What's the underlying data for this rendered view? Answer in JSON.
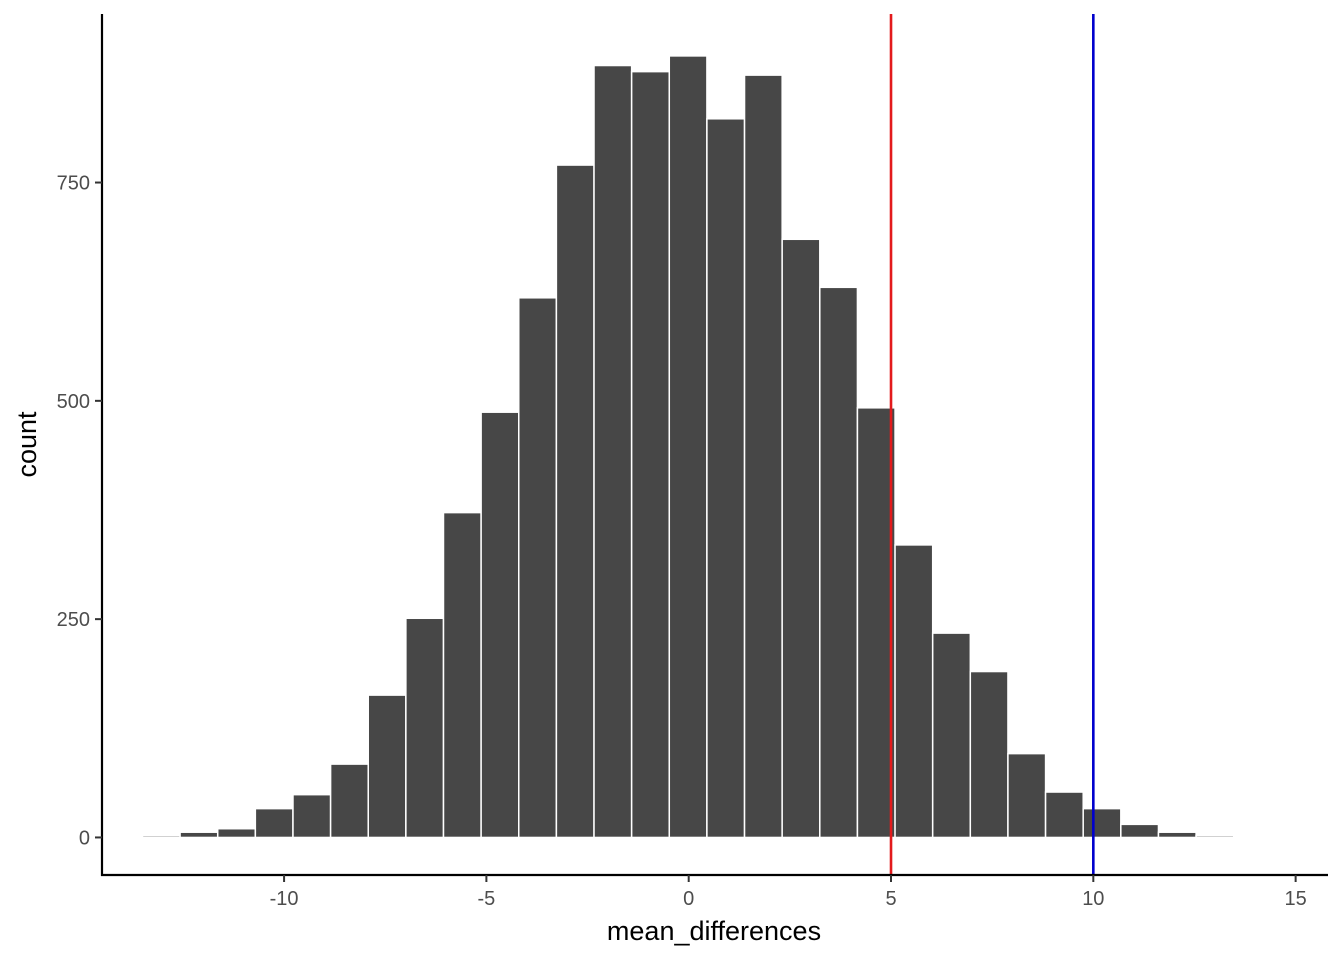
{
  "chart_data": {
    "type": "bar",
    "subtype": "histogram",
    "title": "",
    "xlabel": "mean_differences",
    "ylabel": "count",
    "xlim": [
      -14.5,
      15.8
    ],
    "ylim": [
      -43,
      943
    ],
    "x_ticks": [
      -10,
      -5,
      0,
      5,
      10,
      15
    ],
    "x_tick_labels": [
      "-10",
      "-5",
      "0",
      "5",
      "10",
      "15"
    ],
    "y_ticks": [
      0,
      250,
      500,
      750
    ],
    "y_tick_labels": [
      "0",
      "250",
      "500",
      "750"
    ],
    "bin_width": 0.93,
    "bins": [
      {
        "x0": -13.5,
        "x1": -12.57,
        "count": 2
      },
      {
        "x0": -12.57,
        "x1": -11.64,
        "count": 6
      },
      {
        "x0": -11.64,
        "x1": -10.71,
        "count": 10
      },
      {
        "x0": -10.71,
        "x1": -9.78,
        "count": 33
      },
      {
        "x0": -9.78,
        "x1": -8.85,
        "count": 49
      },
      {
        "x0": -8.85,
        "x1": -7.92,
        "count": 84
      },
      {
        "x0": -7.92,
        "x1": -6.99,
        "count": 163
      },
      {
        "x0": -6.99,
        "x1": -6.06,
        "count": 251
      },
      {
        "x0": -6.06,
        "x1": -5.13,
        "count": 372
      },
      {
        "x0": -5.13,
        "x1": -4.2,
        "count": 487
      },
      {
        "x0": -4.2,
        "x1": -3.27,
        "count": 618
      },
      {
        "x0": -3.27,
        "x1": -2.34,
        "count": 770
      },
      {
        "x0": -2.34,
        "x1": -1.41,
        "count": 884
      },
      {
        "x0": -1.41,
        "x1": -0.48,
        "count": 877
      },
      {
        "x0": -0.48,
        "x1": 0.45,
        "count": 895
      },
      {
        "x0": 0.45,
        "x1": 1.38,
        "count": 823
      },
      {
        "x0": 1.38,
        "x1": 2.31,
        "count": 873
      },
      {
        "x0": 2.31,
        "x1": 3.24,
        "count": 685
      },
      {
        "x0": 3.24,
        "x1": 4.17,
        "count": 630
      },
      {
        "x0": 4.17,
        "x1": 5.1,
        "count": 492
      },
      {
        "x0": 5.1,
        "x1": 6.03,
        "count": 335
      },
      {
        "x0": 6.03,
        "x1": 6.96,
        "count": 234
      },
      {
        "x0": 6.96,
        "x1": 7.89,
        "count": 190
      },
      {
        "x0": 7.89,
        "x1": 8.82,
        "count": 96
      },
      {
        "x0": 8.82,
        "x1": 9.75,
        "count": 52
      },
      {
        "x0": 9.75,
        "x1": 10.68,
        "count": 33
      },
      {
        "x0": 10.68,
        "x1": 11.61,
        "count": 15
      },
      {
        "x0": 11.61,
        "x1": 12.54,
        "count": 6
      },
      {
        "x0": 12.54,
        "x1": 13.47,
        "count": 2
      }
    ],
    "reference_lines": [
      {
        "orientation": "vertical",
        "x": 5,
        "color": "#e31a1c"
      },
      {
        "orientation": "vertical",
        "x": 10,
        "color": "#0000cd"
      }
    ],
    "grid": false,
    "legend": "none",
    "colors": {
      "bar_fill": "#474747",
      "bar_outline": "#ffffff",
      "axis": "#000000",
      "tick_label": "#4d4d4d"
    }
  }
}
